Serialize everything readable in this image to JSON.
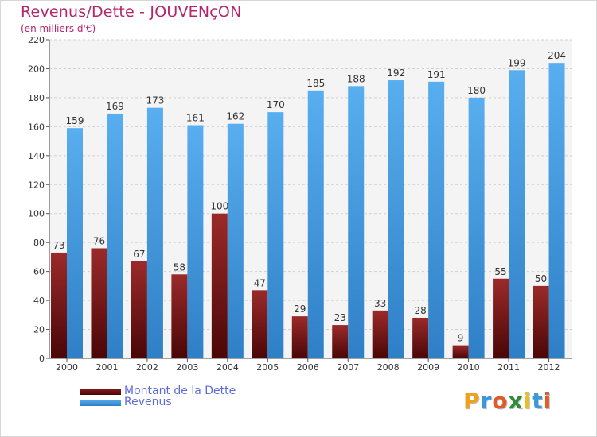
{
  "chart_data": {
    "type": "bar",
    "title": "Revenus/Dette - JOUVENçON",
    "subtitle": "(en milliers d'€)",
    "categories": [
      "2000",
      "2001",
      "2002",
      "2003",
      "2004",
      "2005",
      "2006",
      "2007",
      "2008",
      "2009",
      "2010",
      "2011",
      "2012"
    ],
    "series": [
      {
        "name": "Montant de la Dette",
        "color": "#8a1c1c",
        "values": [
          73,
          76,
          67,
          58,
          100,
          47,
          29,
          23,
          33,
          28,
          9,
          55,
          50
        ]
      },
      {
        "name": "Revenus",
        "color": "#4aa3e8",
        "values": [
          159,
          169,
          173,
          161,
          162,
          170,
          185,
          188,
          192,
          191,
          180,
          199,
          204
        ]
      }
    ],
    "ylim": [
      0,
      220
    ],
    "yticks": [
      0,
      20,
      40,
      60,
      80,
      100,
      120,
      140,
      160,
      180,
      200,
      220
    ],
    "grid": true,
    "legend": "bottom-left"
  },
  "logo": {
    "letters": [
      "P",
      "r",
      "o",
      "x",
      "i",
      "t",
      "i"
    ],
    "colors": [
      "#f0a020",
      "#3a9ad9",
      "#e05a2a",
      "#2f8a3a",
      "#e8c020",
      "#3a9ad9",
      "#e05a2a"
    ]
  }
}
